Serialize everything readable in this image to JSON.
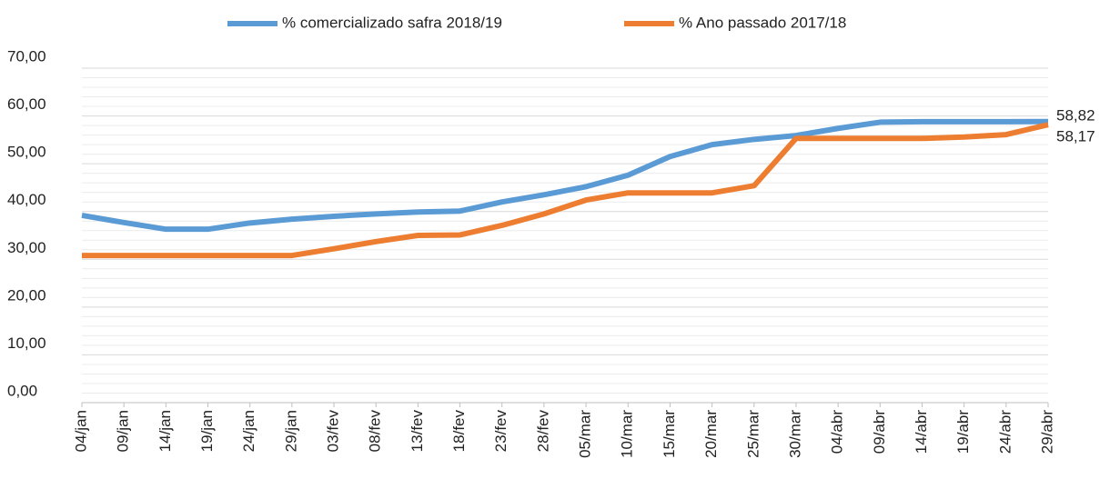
{
  "chart_data": {
    "type": "line",
    "categories": [
      "04/jan",
      "09/jan",
      "14/jan",
      "19/jan",
      "24/jan",
      "29/jan",
      "03/fev",
      "08/fev",
      "13/fev",
      "18/fev",
      "23/fev",
      "28/fev",
      "05/mar",
      "10/mar",
      "15/mar",
      "20/mar",
      "25/mar",
      "30/mar",
      "04/abr",
      "09/abr",
      "14/abr",
      "19/abr",
      "24/abr",
      "29/abr"
    ],
    "series": [
      {
        "name": "% comercializado safra 2018/19",
        "color": "#5b9bd5",
        "values": [
          39.2,
          37.7,
          36.3,
          36.3,
          37.6,
          38.4,
          39.0,
          39.5,
          39.9,
          40.1,
          42.0,
          43.5,
          45.2,
          47.6,
          51.5,
          54.0,
          55.1,
          55.9,
          57.4,
          58.7,
          58.8,
          58.8,
          58.8,
          58.82
        ],
        "value_labels": [
          null,
          null,
          null,
          null,
          null,
          null,
          null,
          null,
          null,
          null,
          null,
          null,
          null,
          null,
          null,
          null,
          null,
          null,
          null,
          null,
          null,
          null,
          null,
          "58,82"
        ]
      },
      {
        "name": "% Ano passado 2017/18",
        "color": "#ed7d31",
        "values": [
          30.8,
          30.8,
          30.8,
          30.8,
          30.8,
          30.8,
          32.2,
          33.7,
          35.0,
          35.1,
          37.1,
          39.5,
          42.4,
          43.9,
          43.9,
          43.9,
          45.4,
          55.3,
          55.3,
          55.3,
          55.3,
          55.6,
          56.1,
          58.17
        ],
        "value_labels": [
          null,
          null,
          null,
          null,
          null,
          null,
          null,
          null,
          null,
          null,
          null,
          null,
          null,
          null,
          null,
          null,
          null,
          null,
          null,
          null,
          null,
          null,
          null,
          "58,17"
        ]
      }
    ],
    "ylim": [
      0,
      70
    ],
    "yticks": [
      {
        "value": 0,
        "label": "0,00"
      },
      {
        "value": 10,
        "label": "10,00"
      },
      {
        "value": 20,
        "label": "20,00"
      },
      {
        "value": 30,
        "label": "30,00"
      },
      {
        "value": 40,
        "label": "40,00"
      },
      {
        "value": 50,
        "label": "50,00"
      },
      {
        "value": 60,
        "label": "60,00"
      },
      {
        "value": 70,
        "label": "70,00"
      }
    ],
    "grid": true,
    "minor_grid": true,
    "legend": "top"
  }
}
